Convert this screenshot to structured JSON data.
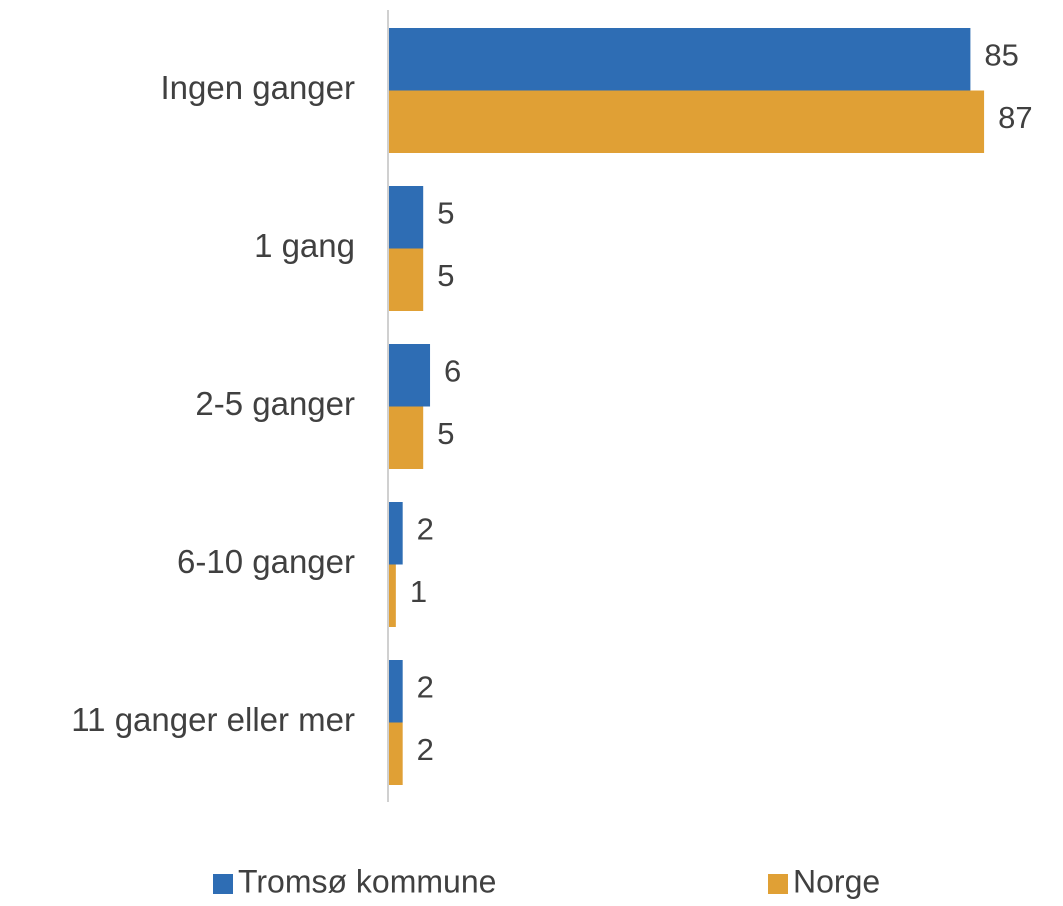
{
  "chart_data": {
    "type": "hbar",
    "categories": [
      "Ingen ganger",
      "1 gang",
      "2-5 ganger",
      "6-10 ganger",
      "11 ganger eller mer"
    ],
    "series": [
      {
        "name": "Tromsø kommune",
        "color": "#2e6db4",
        "values": [
          85,
          5,
          6,
          2,
          2
        ]
      },
      {
        "name": "Norge",
        "color": "#e0a035",
        "values": [
          87,
          5,
          5,
          1,
          2
        ]
      }
    ]
  }
}
